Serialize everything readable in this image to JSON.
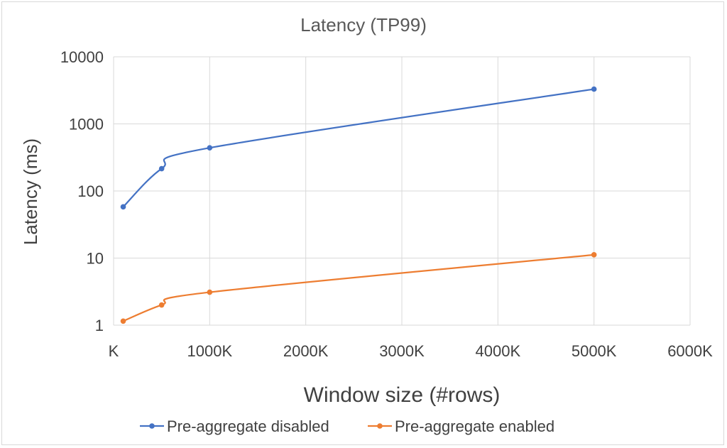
{
  "chart_data": {
    "type": "line",
    "title": "Latency (TP99)",
    "xlabel": "Window size (#rows)",
    "ylabel": "Latency (ms)",
    "y_scale": "log",
    "ylim": [
      1,
      10000
    ],
    "xlim": [
      0,
      6000
    ],
    "x_unit_suffix": "K",
    "x_ticks": [
      "K",
      "1000K",
      "2000K",
      "3000K",
      "4000K",
      "5000K",
      "6000K"
    ],
    "y_ticks": [
      "1",
      "10",
      "100",
      "1000",
      "10000"
    ],
    "grid": true,
    "legend_position": "bottom",
    "series": [
      {
        "name": "Pre-aggregate disabled",
        "color": "#4472C4",
        "x": [
          100,
          500,
          1000,
          5000
        ],
        "values": [
          58,
          215,
          440,
          3300
        ]
      },
      {
        "name": "Pre-aggregate enabled",
        "color": "#ED7D31",
        "x": [
          100,
          500,
          1000,
          5000
        ],
        "values": [
          1.15,
          2.0,
          3.1,
          11.2
        ]
      }
    ]
  }
}
